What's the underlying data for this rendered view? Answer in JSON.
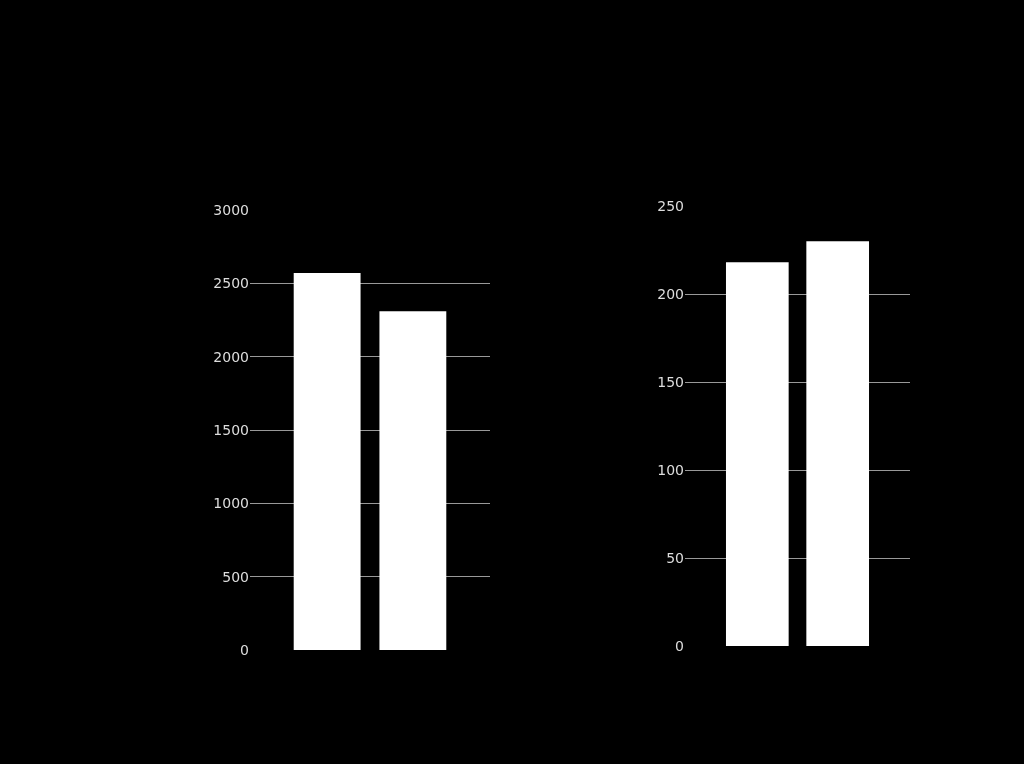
{
  "chart_data": [
    {
      "type": "bar",
      "categories": [
        null,
        null
      ],
      "values": [
        2570,
        2310
      ],
      "color": "#ffffff",
      "ylim": [
        0,
        3000
      ],
      "yticks": [
        0,
        500,
        1000,
        1500,
        2000,
        2500,
        3000
      ],
      "grid": "y",
      "tick_labels": "y"
    },
    {
      "type": "bar",
      "categories": [
        null,
        null
      ],
      "values": [
        218,
        230
      ],
      "color": "#ffffff",
      "ylim": [
        0,
        250
      ],
      "yticks": [
        0,
        50,
        100,
        150,
        200,
        250
      ],
      "grid": "y",
      "tick_labels": "y"
    }
  ]
}
